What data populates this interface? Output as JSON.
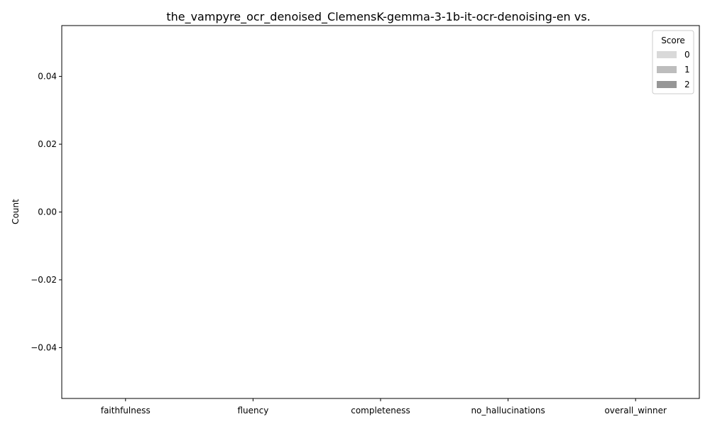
{
  "chart_data": {
    "type": "bar",
    "title": "the_vampyre_ocr_denoised_ClemensK-gemma-3-1b-it-ocr-denoising-en vs.",
    "xlabel": "",
    "ylabel": "Count",
    "categories": [
      "faithfulness",
      "fluency",
      "completeness",
      "no_hallucinations",
      "overall_winner"
    ],
    "series": [
      {
        "name": "0",
        "values": [
          0,
          0,
          0,
          0,
          0
        ],
        "color": "#d9d9d9"
      },
      {
        "name": "1",
        "values": [
          0,
          0,
          0,
          0,
          0
        ],
        "color": "#bdbdbd"
      },
      {
        "name": "2",
        "values": [
          0,
          0,
          0,
          0,
          0
        ],
        "color": "#969696"
      }
    ],
    "ylim": [
      -0.055,
      0.055
    ],
    "yticks": [
      0.04,
      0.02,
      0.0,
      -0.02,
      -0.04
    ],
    "ytick_labels": [
      "0.04",
      "0.02",
      "0.00",
      "−0.02",
      "−0.04"
    ],
    "grid": false,
    "legend": {
      "title": "Score",
      "position": "top-right"
    }
  }
}
